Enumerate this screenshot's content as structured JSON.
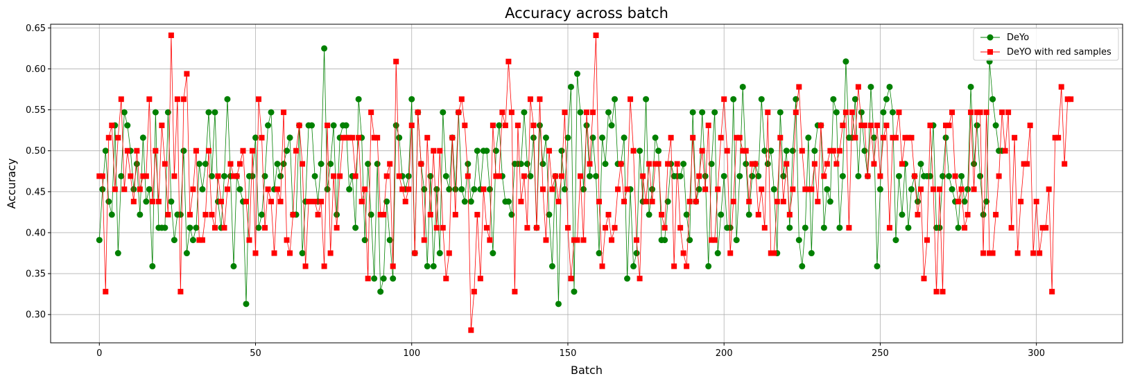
{
  "chart_data": {
    "type": "line",
    "title": "Accuracy across batch",
    "xlabel": "Batch",
    "ylabel": "Accuracy",
    "xlim": [
      -15.6,
      327.6
    ],
    "ylim": [
      0.2655,
      0.6545
    ],
    "xticks": [
      0,
      50,
      100,
      150,
      200,
      250,
      300
    ],
    "yticks": [
      0.3,
      0.35,
      0.4,
      0.45,
      0.5,
      0.55,
      0.6,
      0.65
    ],
    "grid": true,
    "legend_position": "top-right",
    "series": [
      {
        "name": "DeYo",
        "color": "#008000",
        "marker": "circle",
        "values": [
          0.391,
          0.453,
          0.5,
          0.438,
          0.422,
          0.531,
          0.375,
          0.469,
          0.547,
          0.531,
          0.5,
          0.453,
          0.484,
          0.422,
          0.516,
          0.438,
          0.453,
          0.359,
          0.547,
          0.406,
          0.406,
          0.406,
          0.547,
          0.438,
          0.391,
          0.422,
          0.422,
          0.5,
          0.375,
          0.406,
          0.391,
          0.406,
          0.484,
          0.453,
          0.484,
          0.547,
          0.469,
          0.547,
          0.438,
          0.406,
          0.469,
          0.563,
          0.469,
          0.359,
          0.469,
          0.453,
          0.438,
          0.313,
          0.469,
          0.469,
          0.516,
          0.406,
          0.422,
          0.469,
          0.531,
          0.547,
          0.453,
          0.484,
          0.469,
          0.484,
          0.5,
          0.516,
          0.422,
          0.422,
          0.531,
          0.375,
          0.438,
          0.531,
          0.531,
          0.469,
          0.438,
          0.484,
          0.625,
          0.453,
          0.484,
          0.531,
          0.422,
          0.516,
          0.531,
          0.531,
          0.453,
          0.469,
          0.406,
          0.563,
          0.516,
          0.391,
          0.484,
          0.422,
          0.344,
          0.484,
          0.328,
          0.344,
          0.438,
          0.391,
          0.344,
          0.531,
          0.516,
          0.469,
          0.453,
          0.469,
          0.563,
          0.375,
          0.547,
          0.484,
          0.453,
          0.359,
          0.469,
          0.359,
          0.453,
          0.375,
          0.547,
          0.469,
          0.453,
          0.516,
          0.453,
          0.547,
          0.453,
          0.438,
          0.484,
          0.438,
          0.453,
          0.5,
          0.453,
          0.5,
          0.5,
          0.453,
          0.375,
          0.5,
          0.531,
          0.469,
          0.438,
          0.438,
          0.422,
          0.484,
          0.484,
          0.484,
          0.547,
          0.484,
          0.469,
          0.516,
          0.406,
          0.531,
          0.484,
          0.516,
          0.422,
          0.359,
          0.469,
          0.313,
          0.5,
          0.453,
          0.516,
          0.578,
          0.328,
          0.594,
          0.547,
          0.453,
          0.531,
          0.469,
          0.516,
          0.469,
          0.375,
          0.516,
          0.484,
          0.547,
          0.531,
          0.563,
          0.484,
          0.484,
          0.516,
          0.344,
          0.453,
          0.359,
          0.375,
          0.5,
          0.438,
          0.563,
          0.422,
          0.453,
          0.516,
          0.5,
          0.391,
          0.391,
          0.438,
          0.484,
          0.469,
          0.469,
          0.469,
          0.484,
          0.422,
          0.391,
          0.547,
          0.438,
          0.453,
          0.547,
          0.469,
          0.359,
          0.484,
          0.547,
          0.375,
          0.422,
          0.469,
          0.406,
          0.406,
          0.563,
          0.391,
          0.469,
          0.578,
          0.484,
          0.422,
          0.469,
          0.484,
          0.469,
          0.563,
          0.5,
          0.484,
          0.5,
          0.453,
          0.375,
          0.547,
          0.469,
          0.5,
          0.406,
          0.5,
          0.563,
          0.391,
          0.359,
          0.406,
          0.516,
          0.375,
          0.5,
          0.531,
          0.531,
          0.406,
          0.453,
          0.438,
          0.563,
          0.547,
          0.406,
          0.469,
          0.609,
          0.516,
          0.516,
          0.563,
          0.469,
          0.547,
          0.5,
          0.469,
          0.578,
          0.516,
          0.359,
          0.453,
          0.547,
          0.563,
          0.578,
          0.547,
          0.391,
          0.469,
          0.422,
          0.484,
          0.406,
          0.453,
          0.469,
          0.438,
          0.484,
          0.469,
          0.469,
          0.469,
          0.531,
          0.406,
          0.406,
          0.469,
          0.516,
          0.469,
          0.453,
          0.438,
          0.406,
          0.469,
          0.438,
          0.453,
          0.578,
          0.484,
          0.531,
          0.469,
          0.422,
          0.438,
          0.609,
          0.563,
          0.531,
          0.5,
          0.5
        ]
      },
      {
        "name": "DeYO with red samples",
        "color": "#ff0000",
        "marker": "square",
        "values": [
          0.469,
          0.469,
          0.328,
          0.516,
          0.531,
          0.453,
          0.516,
          0.563,
          0.453,
          0.5,
          0.469,
          0.438,
          0.5,
          0.453,
          0.469,
          0.469,
          0.563,
          0.438,
          0.5,
          0.438,
          0.531,
          0.484,
          0.422,
          0.641,
          0.469,
          0.563,
          0.328,
          0.563,
          0.594,
          0.422,
          0.453,
          0.5,
          0.391,
          0.391,
          0.422,
          0.5,
          0.422,
          0.406,
          0.469,
          0.438,
          0.406,
          0.453,
          0.484,
          0.469,
          0.469,
          0.484,
          0.5,
          0.438,
          0.391,
          0.5,
          0.375,
          0.563,
          0.516,
          0.406,
          0.453,
          0.438,
          0.375,
          0.453,
          0.438,
          0.547,
          0.391,
          0.375,
          0.422,
          0.5,
          0.531,
          0.484,
          0.359,
          0.438,
          0.438,
          0.438,
          0.422,
          0.438,
          0.359,
          0.531,
          0.375,
          0.469,
          0.406,
          0.469,
          0.516,
          0.516,
          0.516,
          0.516,
          0.469,
          0.516,
          0.438,
          0.453,
          0.344,
          0.547,
          0.516,
          0.516,
          0.422,
          0.422,
          0.469,
          0.484,
          0.359,
          0.609,
          0.469,
          0.453,
          0.438,
          0.453,
          0.531,
          0.375,
          0.547,
          0.484,
          0.391,
          0.516,
          0.422,
          0.5,
          0.406,
          0.5,
          0.406,
          0.344,
          0.375,
          0.516,
          0.422,
          0.547,
          0.563,
          0.531,
          0.469,
          0.281,
          0.328,
          0.422,
          0.344,
          0.453,
          0.406,
          0.391,
          0.531,
          0.469,
          0.469,
          0.547,
          0.531,
          0.609,
          0.547,
          0.328,
          0.531,
          0.438,
          0.469,
          0.406,
          0.563,
          0.531,
          0.406,
          0.563,
          0.453,
          0.391,
          0.5,
          0.453,
          0.469,
          0.438,
          0.469,
          0.547,
          0.406,
          0.344,
          0.391,
          0.391,
          0.469,
          0.391,
          0.547,
          0.484,
          0.547,
          0.641,
          0.438,
          0.359,
          0.406,
          0.422,
          0.391,
          0.406,
          0.453,
          0.484,
          0.438,
          0.453,
          0.563,
          0.5,
          0.391,
          0.344,
          0.469,
          0.438,
          0.484,
          0.438,
          0.484,
          0.484,
          0.422,
          0.406,
          0.484,
          0.516,
          0.359,
          0.484,
          0.406,
          0.375,
          0.359,
          0.438,
          0.516,
          0.438,
          0.469,
          0.5,
          0.453,
          0.531,
          0.391,
          0.391,
          0.453,
          0.516,
          0.563,
          0.5,
          0.375,
          0.438,
          0.516,
          0.516,
          0.5,
          0.5,
          0.438,
          0.484,
          0.484,
          0.422,
          0.453,
          0.406,
          0.547,
          0.375,
          0.375,
          0.438,
          0.516,
          0.438,
          0.484,
          0.422,
          0.453,
          0.547,
          0.578,
          0.5,
          0.453,
          0.453,
          0.453,
          0.484,
          0.438,
          0.531,
          0.469,
          0.484,
          0.5,
          0.5,
          0.484,
          0.5,
          0.531,
          0.547,
          0.406,
          0.547,
          0.516,
          0.578,
          0.531,
          0.531,
          0.469,
          0.531,
          0.484,
          0.531,
          0.469,
          0.516,
          0.531,
          0.406,
          0.516,
          0.516,
          0.547,
          0.484,
          0.516,
          0.516,
          0.516,
          0.469,
          0.422,
          0.453,
          0.344,
          0.391,
          0.531,
          0.453,
          0.328,
          0.453,
          0.328,
          0.531,
          0.531,
          0.547,
          0.469,
          0.438,
          0.453,
          0.406,
          0.422,
          0.547,
          0.453,
          0.547,
          0.547,
          0.375,
          0.547,
          0.375,
          0.375,
          0.422,
          0.469,
          0.547,
          0.5,
          0.547,
          0.406,
          0.516,
          0.375,
          0.438,
          0.484,
          0.484,
          0.531,
          0.375,
          0.438,
          0.375,
          0.406,
          0.406,
          0.453,
          0.328,
          0.516,
          0.516,
          0.578,
          0.484,
          0.563,
          0.563
        ]
      }
    ]
  }
}
